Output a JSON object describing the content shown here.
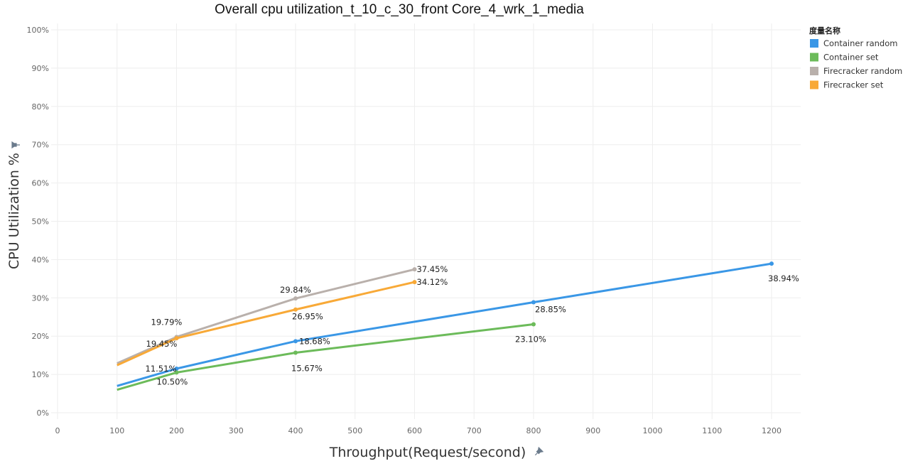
{
  "chart_data": {
    "type": "line",
    "title": "Overall cpu utilization_t_10_c_30_front Core_4_wrk_1_media",
    "xlabel": "Throughput(Request/second)",
    "ylabel": "CPU Utilization %",
    "xlim": [
      0,
      1250
    ],
    "ylim": [
      0,
      100
    ],
    "x_ticks": [
      0,
      100,
      200,
      300,
      400,
      500,
      600,
      700,
      800,
      900,
      1000,
      1100,
      1200
    ],
    "y_ticks": [
      0,
      10,
      20,
      30,
      40,
      50,
      60,
      70,
      80,
      90,
      100
    ],
    "y_tick_suffix": "%",
    "grid": true,
    "legend": {
      "title": "度量名称",
      "position": "top-right"
    },
    "series": [
      {
        "name": "Container random",
        "color": "#3a97e6",
        "x": [
          100,
          200,
          400,
          800,
          1200
        ],
        "y": [
          7.0,
          11.51,
          18.68,
          28.85,
          38.94
        ],
        "labels": [
          "",
          "11.51%",
          "18.68%",
          "28.85%",
          "38.94%"
        ]
      },
      {
        "name": "Container set",
        "color": "#6cbb5a",
        "x": [
          100,
          200,
          400,
          800
        ],
        "y": [
          6.0,
          10.5,
          15.67,
          23.1
        ],
        "labels": [
          "",
          "10.50%",
          "15.67%",
          "23.10%"
        ]
      },
      {
        "name": "Firecracker random",
        "color": "#b9b0ab",
        "x": [
          100,
          200,
          400,
          600
        ],
        "y": [
          12.9,
          19.79,
          29.84,
          37.45
        ],
        "labels": [
          "",
          "19.79%",
          "29.84%",
          "37.45%"
        ]
      },
      {
        "name": "Firecracker set",
        "color": "#f8a937",
        "x": [
          100,
          200,
          400,
          600
        ],
        "y": [
          12.4,
          19.45,
          26.95,
          34.12
        ],
        "labels": [
          "",
          "19.45%",
          "26.95%",
          "34.12%"
        ]
      }
    ]
  }
}
